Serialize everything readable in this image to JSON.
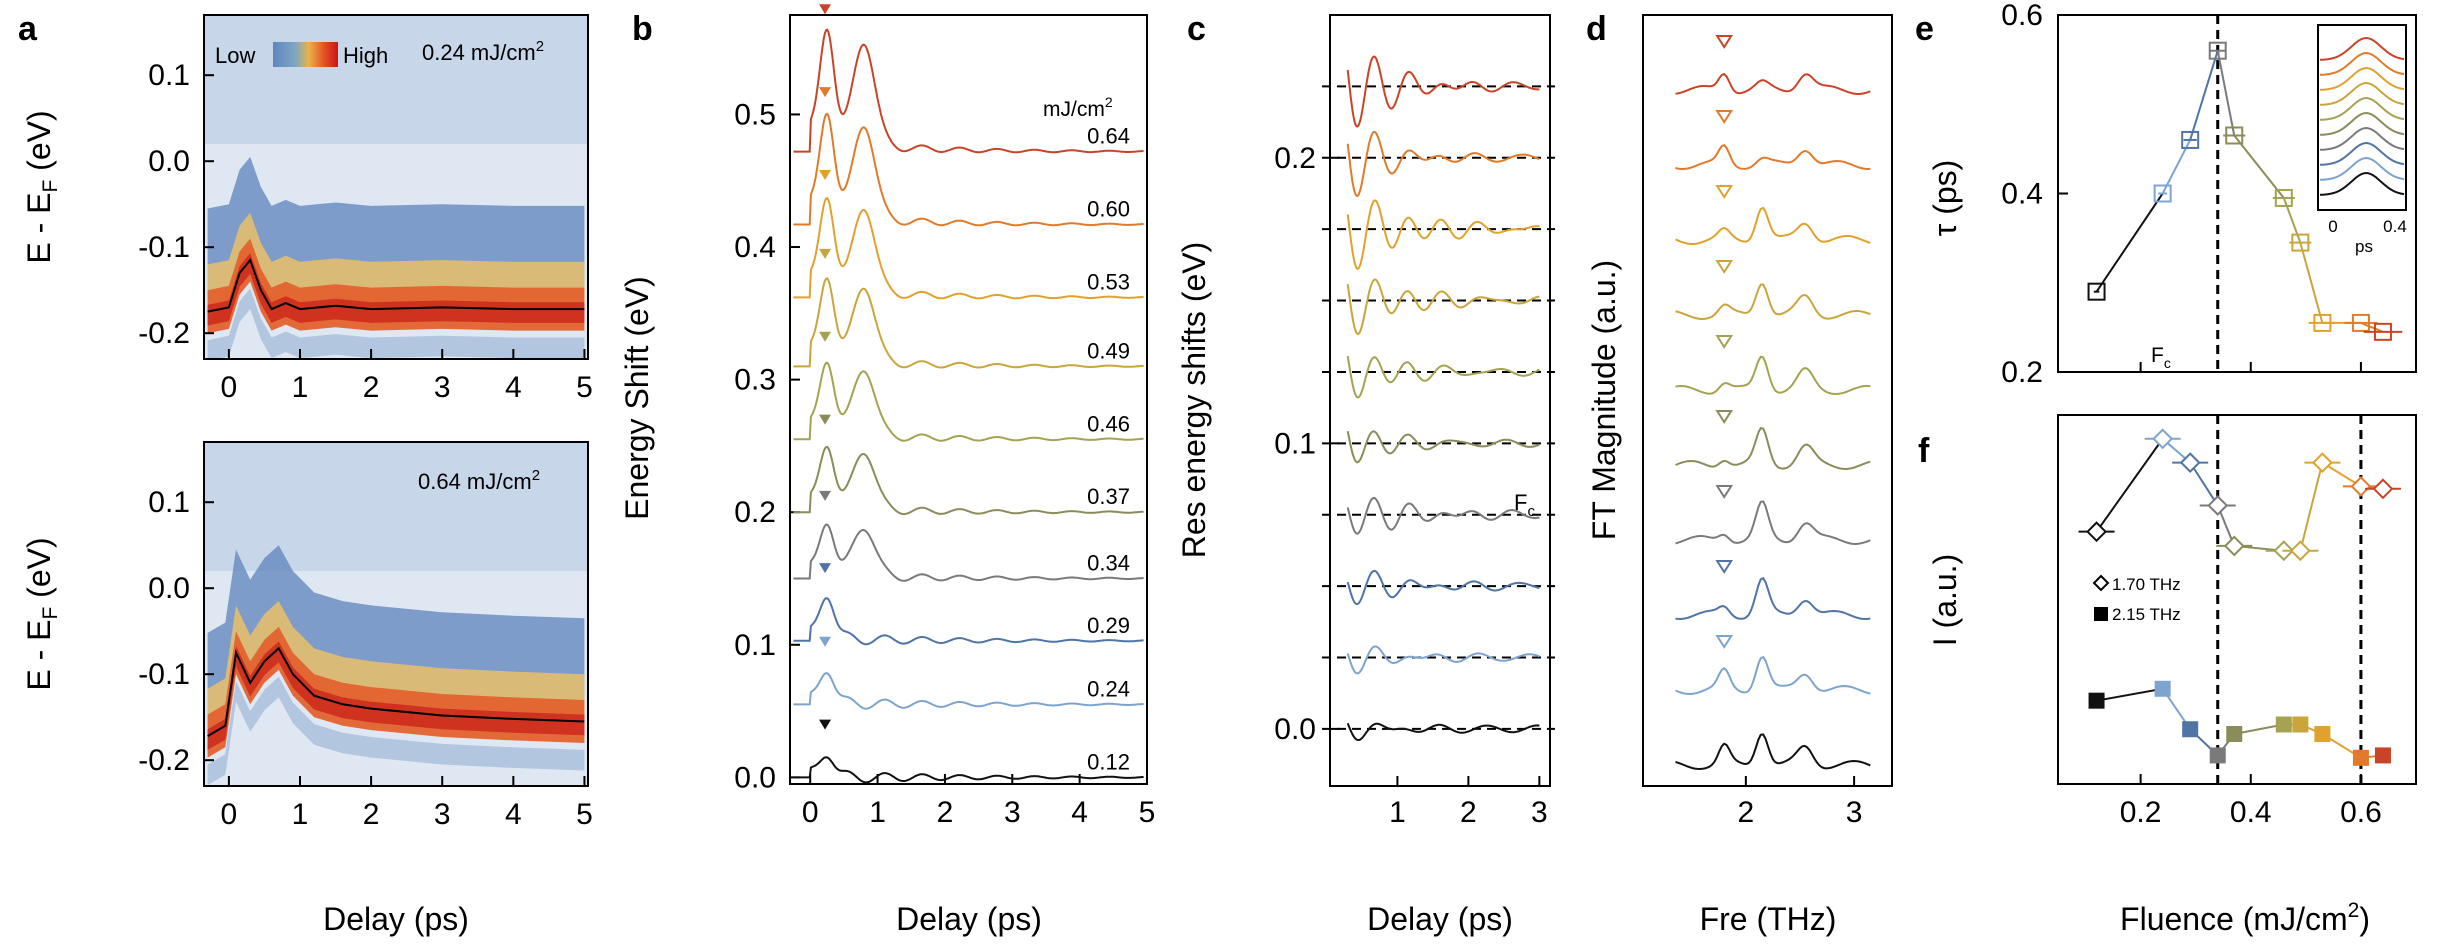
{
  "colors": {
    "fluences": {
      "0.12": "#111111",
      "0.24": "#7da4cf",
      "0.29": "#4f74a5",
      "0.34": "#7a7a7a",
      "0.37": "#8b8c5a",
      "0.46": "#a5a251",
      "0.49": "#c9a53b",
      "0.53": "#e0a22c",
      "0.60": "#e17a2a",
      "0.64": "#c94427"
    }
  },
  "chart_data": [
    {
      "panel": "a",
      "type": "heatmap",
      "subpanels": [
        {
          "fluence_label": "0.24 mJ/cm2",
          "ylabel": "E - EF (eV)",
          "yticks": [
            "0.1",
            "0.0",
            "-0.1",
            "-0.2"
          ],
          "ylim": [
            -0.23,
            0.17
          ],
          "colorbar": {
            "low_label": "Low",
            "high_label": "High"
          },
          "overlay_trace": {
            "x": [
              -0.3,
              0,
              0.15,
              0.3,
              0.45,
              0.6,
              0.8,
              1.0,
              1.5,
              2,
              3,
              4,
              5
            ],
            "y": [
              -0.175,
              -0.17,
              -0.13,
              -0.115,
              -0.15,
              -0.172,
              -0.165,
              -0.172,
              -0.168,
              -0.172,
              -0.17,
              -0.172,
              -0.172
            ]
          }
        },
        {
          "fluence_label": "0.64 mJ/cm2",
          "ylabel": "E - EF (eV)",
          "yticks": [
            "0.1",
            "0.0",
            "-0.1",
            "-0.2"
          ],
          "ylim": [
            -0.23,
            0.17
          ],
          "overlay_trace": {
            "x": [
              -0.3,
              -0.05,
              0.1,
              0.3,
              0.5,
              0.7,
              0.9,
              1.2,
              1.6,
              2,
              3,
              4,
              5
            ],
            "y": [
              -0.172,
              -0.16,
              -0.075,
              -0.11,
              -0.085,
              -0.07,
              -0.1,
              -0.125,
              -0.135,
              -0.14,
              -0.148,
              -0.152,
              -0.155
            ]
          }
        }
      ],
      "xlabel": "Delay (ps)",
      "xticks": [
        "0",
        "1",
        "2",
        "3",
        "4",
        "5"
      ],
      "xlim": [
        -0.35,
        5.05
      ]
    },
    {
      "panel": "b",
      "type": "line",
      "xlabel": "Delay (ps)",
      "ylabel": "Energy Shift (eV)",
      "xticks": [
        "0",
        "1",
        "2",
        "3",
        "4",
        "5"
      ],
      "yticks": [
        "0.0",
        "0.1",
        "0.2",
        "0.3",
        "0.4",
        "0.5"
      ],
      "xlim": [
        -0.3,
        5.0
      ],
      "ylim": [
        -0.005,
        0.575
      ],
      "unit_label": "mJ/cm2",
      "series": [
        {
          "name": "0.12",
          "offset": 0.0
        },
        {
          "name": "0.24",
          "offset": 0.055
        },
        {
          "name": "0.29",
          "offset": 0.103
        },
        {
          "name": "0.34",
          "offset": 0.15
        },
        {
          "name": "0.37",
          "offset": 0.2
        },
        {
          "name": "0.46",
          "offset": 0.255
        },
        {
          "name": "0.49",
          "offset": 0.31
        },
        {
          "name": "0.53",
          "offset": 0.362
        },
        {
          "name": "0.60",
          "offset": 0.417
        },
        {
          "name": "0.64",
          "offset": 0.472
        }
      ]
    },
    {
      "panel": "c",
      "type": "line",
      "xlabel": "Delay (ps)",
      "ylabel": "Res energy shifts (eV)",
      "xticks": [
        "1",
        "2",
        "3"
      ],
      "yticks": [
        "0.0",
        "0.1",
        "0.2"
      ],
      "xlim": [
        0.05,
        3.15
      ],
      "ylim": [
        -0.02,
        0.25
      ],
      "baselines": [
        0.0,
        0.025,
        0.05,
        0.075,
        0.1,
        0.125,
        0.15,
        0.175,
        0.2,
        0.225
      ],
      "annotation": "Fc"
    },
    {
      "panel": "d",
      "type": "line",
      "xlabel": "Fre (THz)",
      "ylabel": "FT Magnitude (a.u.)",
      "xticks": [
        "2",
        "3"
      ],
      "xlim": [
        1.05,
        3.35
      ],
      "peaks_first": [
        1.8,
        1.8,
        1.8,
        1.8,
        1.8,
        1.8,
        1.8,
        1.8,
        1.8,
        1.8
      ],
      "peak_markers_thz": [
        1.7,
        2.15,
        2.55
      ]
    },
    {
      "panel": "e",
      "type": "scatter",
      "ylabel": "τ (ps)",
      "yticks": [
        "0.2",
        "0.4",
        "0.6"
      ],
      "ylim": [
        0.2,
        0.6
      ],
      "xlim": [
        0.05,
        0.7
      ],
      "fluence": [
        0.12,
        0.24,
        0.29,
        0.34,
        0.37,
        0.46,
        0.49,
        0.53,
        0.6,
        0.64
      ],
      "tau": [
        0.29,
        0.4,
        0.46,
        0.56,
        0.465,
        0.395,
        0.345,
        0.255,
        0.255,
        0.245
      ],
      "xerr": [
        0.005,
        0.008,
        0.012,
        0.015,
        0.02,
        0.02,
        0.02,
        0.025,
        0.03,
        0.035
      ],
      "vline_label": "Fc",
      "inset": {
        "xlabel": "ps",
        "xticks": [
          "0",
          "0.4"
        ]
      }
    },
    {
      "panel": "f",
      "type": "scatter",
      "xlabel": "Fluence (mJ/cm2)",
      "ylabel": "I (a.u.)",
      "xticks": [
        "0.2",
        "0.4",
        "0.6"
      ],
      "xlim": [
        0.05,
        0.7
      ],
      "series": [
        {
          "name": "1.70 THz",
          "marker": "diamond-open",
          "fluence": [
            0.12,
            0.24,
            0.29,
            0.34,
            0.37,
            0.46,
            0.49,
            0.53,
            0.6,
            0.64
          ],
          "intensity": [
            0.56,
            0.95,
            0.85,
            0.67,
            0.5,
            0.48,
            0.48,
            0.85,
            0.75,
            0.74
          ]
        },
        {
          "name": "2.15 THz",
          "marker": "square-filled",
          "fluence": [
            0.12,
            0.24,
            0.29,
            0.34,
            0.37,
            0.46,
            0.49,
            0.53,
            0.6,
            0.64
          ],
          "intensity": [
            -0.15,
            -0.1,
            -0.27,
            -0.38,
            -0.29,
            -0.25,
            -0.25,
            -0.29,
            -0.39,
            -0.38
          ]
        }
      ]
    }
  ],
  "panels": {
    "a": {
      "letter": "a",
      "low": "Low",
      "high": "High",
      "f1_text": "0.24 mJ/cm",
      "f2_text": "0.64 mJ/cm",
      "sup": "2",
      "ylab_main": "E - E",
      "ylab_sub": "F",
      "ylab_tail": " (eV)",
      "xlabel": "Delay (ps)"
    },
    "b": {
      "letter": "b",
      "ylabel": "Energy Shift (eV)",
      "xlabel": "Delay (ps)",
      "unit": "mJ/cm",
      "unit_sup": "2"
    },
    "c": {
      "letter": "c",
      "ylabel": "Res energy shifts (eV)",
      "xlabel": "Delay (ps)",
      "fc_main": "F",
      "fc_sub": "c"
    },
    "d": {
      "letter": "d",
      "ylabel": "FT Magnitude (a.u.)",
      "xlabel": "Fre (THz)"
    },
    "e": {
      "letter": "e",
      "ylabel": "τ  (ps)",
      "fc_main": "F",
      "fc_sub": "c",
      "inset_xlabel": "ps"
    },
    "f": {
      "letter": "f",
      "ylabel": "I  (a.u.)",
      "leg1": "1.70 THz",
      "leg2": "2.15 THz",
      "xlabel_main": "Fluence (mJ/cm",
      "xlabel_sup": "2",
      "xlabel_tail": ")"
    }
  }
}
